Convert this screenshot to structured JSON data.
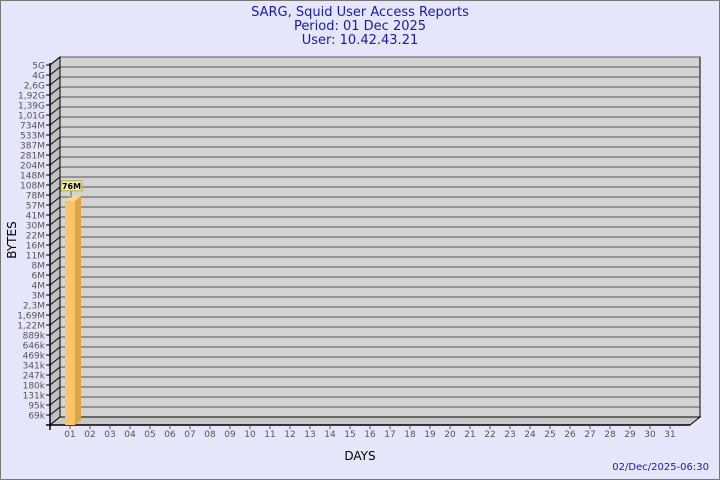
{
  "chart_data": {
    "type": "bar",
    "title": "SARG, Squid User Access Reports",
    "subtitle": [
      "Period: 01 Dec 2025",
      "User: 10.42.43.21"
    ],
    "xlabel": "DAYS",
    "ylabel": "BYTES",
    "y_scale": "log",
    "y_ticks": [
      "5G",
      "4G",
      "2,6G",
      "1,92G",
      "1,39G",
      "1,01G",
      "734M",
      "533M",
      "387M",
      "281M",
      "204M",
      "148M",
      "108M",
      "78M",
      "57M",
      "41M",
      "30M",
      "22M",
      "16M",
      "11M",
      "8M",
      "6M",
      "4M",
      "3M",
      "2,3M",
      "1,69M",
      "1,22M",
      "889k",
      "646k",
      "469k",
      "341k",
      "247k",
      "180k",
      "131k",
      "95k",
      "69k"
    ],
    "categories": [
      "01",
      "02",
      "03",
      "04",
      "05",
      "06",
      "07",
      "08",
      "09",
      "10",
      "11",
      "12",
      "13",
      "14",
      "15",
      "16",
      "17",
      "18",
      "19",
      "20",
      "21",
      "22",
      "23",
      "24",
      "25",
      "26",
      "27",
      "28",
      "29",
      "30",
      "31"
    ],
    "bars": [
      {
        "day": "01",
        "value": "76M",
        "label": "76M"
      }
    ],
    "grid": true,
    "bar_color": "#fcc468",
    "background": "#e6e6fa",
    "plot_color": "#d3d3d3"
  },
  "footer": {
    "timestamp": "02/Dec/2025-06:30"
  }
}
